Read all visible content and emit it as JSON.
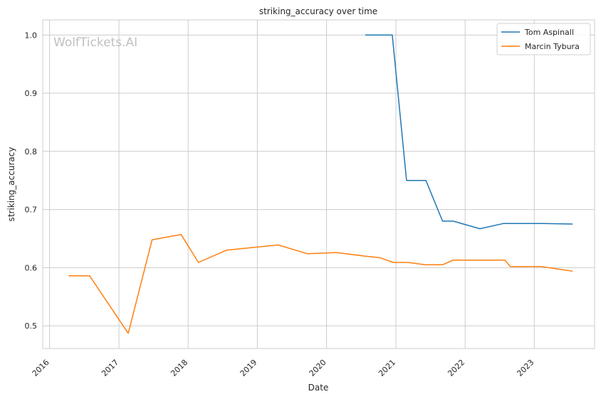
{
  "chart_data": {
    "type": "line",
    "title": "striking_accuracy over time",
    "xlabel": "Date",
    "ylabel": "striking_accuracy",
    "watermark": "WolfTickets.AI",
    "x_range": [
      "2015-11-26",
      "2023-11-15"
    ],
    "ylim": [
      0.461,
      1.026
    ],
    "x_ticks": [
      "2016",
      "2017",
      "2018",
      "2019",
      "2020",
      "2021",
      "2022",
      "2023"
    ],
    "y_ticks": [
      "0.5",
      "0.6",
      "0.7",
      "0.8",
      "0.9",
      "1.0"
    ],
    "grid": true,
    "legend_position": "top-right",
    "series": [
      {
        "name": "Tom Aspinall",
        "color": "#1f77b4",
        "points": [
          [
            "2020-07-23",
            1.0
          ],
          [
            "2020-12-13",
            1.0
          ],
          [
            "2021-02-26",
            0.75
          ],
          [
            "2021-06-08",
            0.75
          ],
          [
            "2021-09-04",
            0.68
          ],
          [
            "2021-10-30",
            0.68
          ],
          [
            "2022-03-20",
            0.667
          ],
          [
            "2022-07-23",
            0.676
          ],
          [
            "2023-02-01",
            0.676
          ],
          [
            "2023-07-22",
            0.675
          ]
        ]
      },
      {
        "name": "Marcin Tybura",
        "color": "#ff7f0e",
        "points": [
          [
            "2016-04-10",
            0.586
          ],
          [
            "2016-07-30",
            0.586
          ],
          [
            "2017-02-19",
            0.487
          ],
          [
            "2017-06-25",
            0.648
          ],
          [
            "2017-11-25",
            0.657
          ],
          [
            "2018-02-24",
            0.609
          ],
          [
            "2018-07-22",
            0.63
          ],
          [
            "2019-04-20",
            0.639
          ],
          [
            "2019-09-21",
            0.624
          ],
          [
            "2020-02-22",
            0.626
          ],
          [
            "2020-07-18",
            0.62
          ],
          [
            "2020-10-10",
            0.617
          ],
          [
            "2020-12-19",
            0.609
          ],
          [
            "2021-03-06",
            0.609
          ],
          [
            "2021-06-05",
            0.605
          ],
          [
            "2021-09-04",
            0.605
          ],
          [
            "2021-10-30",
            0.613
          ],
          [
            "2022-07-30",
            0.613
          ],
          [
            "2022-08-27",
            0.602
          ],
          [
            "2023-02-04",
            0.602
          ],
          [
            "2023-07-22",
            0.594
          ]
        ]
      }
    ]
  }
}
